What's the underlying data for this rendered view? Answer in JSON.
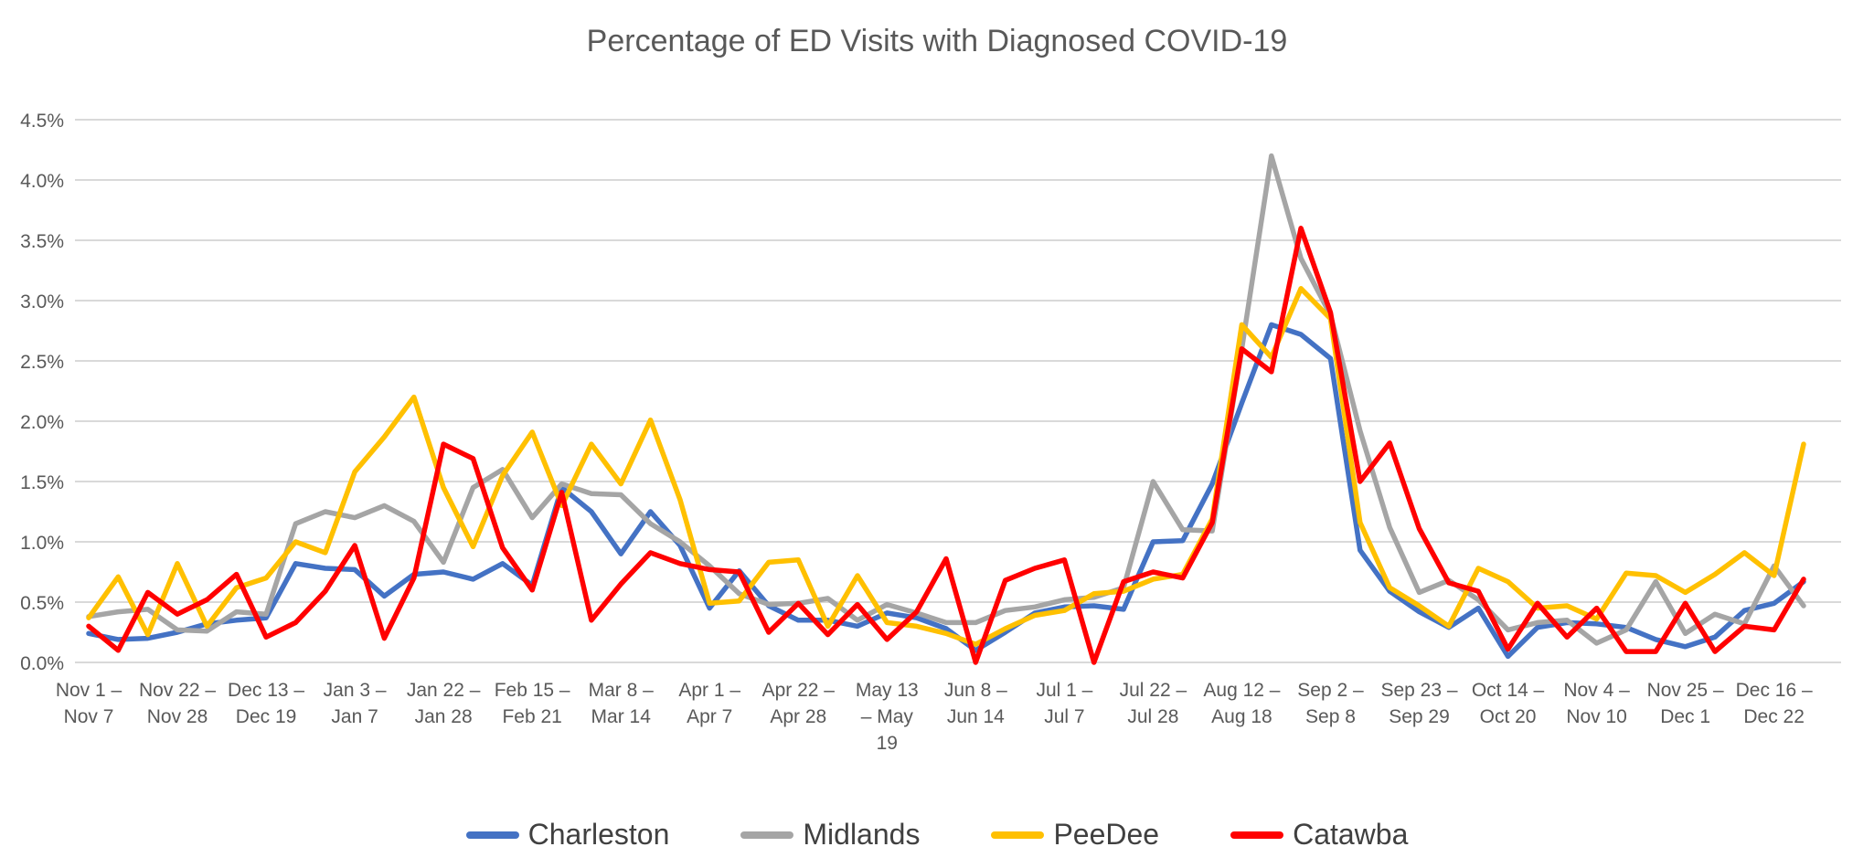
{
  "title": "Percentage of ED Visits with Diagnosed COVID-19",
  "colors": {
    "charleston": "#4472C4",
    "midlands": "#A5A5A5",
    "peedee": "#FFC000",
    "catawba": "#FF0000",
    "gridline": "#D9D9D9",
    "axis_text": "#595959",
    "legend_text": "#404040",
    "background": "#FFFFFF"
  },
  "legend": {
    "items": [
      {
        "label": "Charleston",
        "color": "#4472C4"
      },
      {
        "label": "Midlands",
        "color": "#A5A5A5"
      },
      {
        "label": "PeeDee",
        "color": "#FFC000"
      },
      {
        "label": "Catawba",
        "color": "#FF0000"
      }
    ]
  },
  "chart_data": {
    "type": "line",
    "title": "Percentage of ED Visits with Diagnosed COVID-19",
    "xlabel": "",
    "ylabel": "",
    "ylim": [
      0,
      4.5
    ],
    "grid": true,
    "legend_position": "bottom",
    "n_points": 59,
    "tick_every_n_weeks": 3,
    "y_ticks": [
      "0.0%",
      "0.5%",
      "1.0%",
      "1.5%",
      "2.0%",
      "2.5%",
      "3.0%",
      "3.5%",
      "4.0%",
      "4.5%"
    ],
    "x_tick_point_indices": [
      0,
      3,
      6,
      9,
      12,
      15,
      18,
      21,
      24,
      27,
      30,
      33,
      36,
      39,
      42,
      45,
      48,
      51,
      54,
      57
    ],
    "x_tick_labels": [
      [
        "Nov 1 –",
        "Nov 7"
      ],
      [
        "Nov 22 –",
        "Nov 28"
      ],
      [
        "Dec 13 –",
        "Dec 19"
      ],
      [
        "Jan 3 –",
        "Jan 7"
      ],
      [
        "Jan 22 –",
        "Jan 28"
      ],
      [
        "Feb 15 –",
        "Feb 21"
      ],
      [
        "Mar 8 –",
        "Mar 14"
      ],
      [
        "Apr 1 –",
        "Apr 7"
      ],
      [
        "Apr 22 –",
        "Apr 28"
      ],
      [
        "May 13",
        "– May",
        "19"
      ],
      [
        "Jun 8 –",
        "Jun 14"
      ],
      [
        "Jul 1 –",
        "Jul 7"
      ],
      [
        "Jul 22 –",
        "Jul 28"
      ],
      [
        "Aug 12 –",
        "Aug 18"
      ],
      [
        "Sep 2 –",
        "Sep 8"
      ],
      [
        "Sep 23 –",
        "Sep 29"
      ],
      [
        "Oct 14 –",
        "Oct 20"
      ],
      [
        "Nov 4 –",
        "Nov 10"
      ],
      [
        "Nov 25 –",
        "Dec 1"
      ],
      [
        "Dec 16 –",
        "Dec 22"
      ]
    ],
    "series": [
      {
        "name": "Charleston",
        "color": "#4472C4",
        "values": [
          0.24,
          0.19,
          0.2,
          0.25,
          0.32,
          0.35,
          0.37,
          0.82,
          0.78,
          0.77,
          0.55,
          0.73,
          0.75,
          0.69,
          0.82,
          0.64,
          1.45,
          1.25,
          0.9,
          1.25,
          0.97,
          0.45,
          0.76,
          0.47,
          0.35,
          0.35,
          0.3,
          0.41,
          0.37,
          0.28,
          0.1,
          0.25,
          0.41,
          0.46,
          0.47,
          0.44,
          1.0,
          1.01,
          1.48,
          2.15,
          2.8,
          2.72,
          2.52,
          0.93,
          0.59,
          0.42,
          0.29,
          0.45,
          0.05,
          0.29,
          0.33,
          0.32,
          0.29,
          0.19,
          0.13,
          0.21,
          0.43,
          0.49,
          0.67
        ]
      },
      {
        "name": "Midlands",
        "color": "#A5A5A5",
        "values": [
          0.38,
          0.42,
          0.44,
          0.27,
          0.26,
          0.42,
          0.4,
          1.15,
          1.25,
          1.2,
          1.3,
          1.17,
          0.83,
          1.45,
          1.6,
          1.2,
          1.48,
          1.4,
          1.39,
          1.15,
          1.0,
          0.8,
          0.57,
          0.48,
          0.49,
          0.53,
          0.35,
          0.48,
          0.41,
          0.33,
          0.33,
          0.43,
          0.46,
          0.52,
          0.54,
          0.62,
          1.5,
          1.1,
          1.09,
          2.6,
          4.2,
          3.35,
          2.88,
          1.92,
          1.12,
          0.58,
          0.68,
          0.52,
          0.27,
          0.33,
          0.35,
          0.16,
          0.27,
          0.67,
          0.24,
          0.4,
          0.32,
          0.8,
          0.47
        ]
      },
      {
        "name": "PeeDee",
        "color": "#FFC000",
        "values": [
          0.37,
          0.71,
          0.23,
          0.82,
          0.3,
          0.62,
          0.7,
          1.0,
          0.91,
          1.58,
          1.87,
          2.2,
          1.45,
          0.96,
          1.55,
          1.91,
          1.3,
          1.81,
          1.48,
          2.01,
          1.35,
          0.49,
          0.51,
          0.83,
          0.85,
          0.3,
          0.72,
          0.33,
          0.3,
          0.24,
          0.15,
          0.28,
          0.39,
          0.43,
          0.57,
          0.59,
          0.69,
          0.73,
          1.19,
          2.8,
          2.53,
          3.1,
          2.85,
          1.16,
          0.62,
          0.47,
          0.3,
          0.78,
          0.67,
          0.45,
          0.47,
          0.36,
          0.74,
          0.72,
          0.58,
          0.73,
          0.91,
          0.72,
          1.81
        ]
      },
      {
        "name": "Catawba",
        "color": "#FF0000",
        "values": [
          0.3,
          0.1,
          0.58,
          0.4,
          0.52,
          0.73,
          0.21,
          0.33,
          0.59,
          0.97,
          0.2,
          0.7,
          1.81,
          1.69,
          0.95,
          0.6,
          1.41,
          0.35,
          0.65,
          0.91,
          0.82,
          0.77,
          0.75,
          0.25,
          0.49,
          0.23,
          0.48,
          0.19,
          0.42,
          0.86,
          0.0,
          0.68,
          0.78,
          0.85,
          0.0,
          0.67,
          0.75,
          0.7,
          1.16,
          2.6,
          2.41,
          3.6,
          2.9,
          1.5,
          1.82,
          1.11,
          0.66,
          0.59,
          0.11,
          0.49,
          0.21,
          0.45,
          0.09,
          0.09,
          0.49,
          0.09,
          0.3,
          0.27,
          0.69
        ]
      }
    ]
  }
}
